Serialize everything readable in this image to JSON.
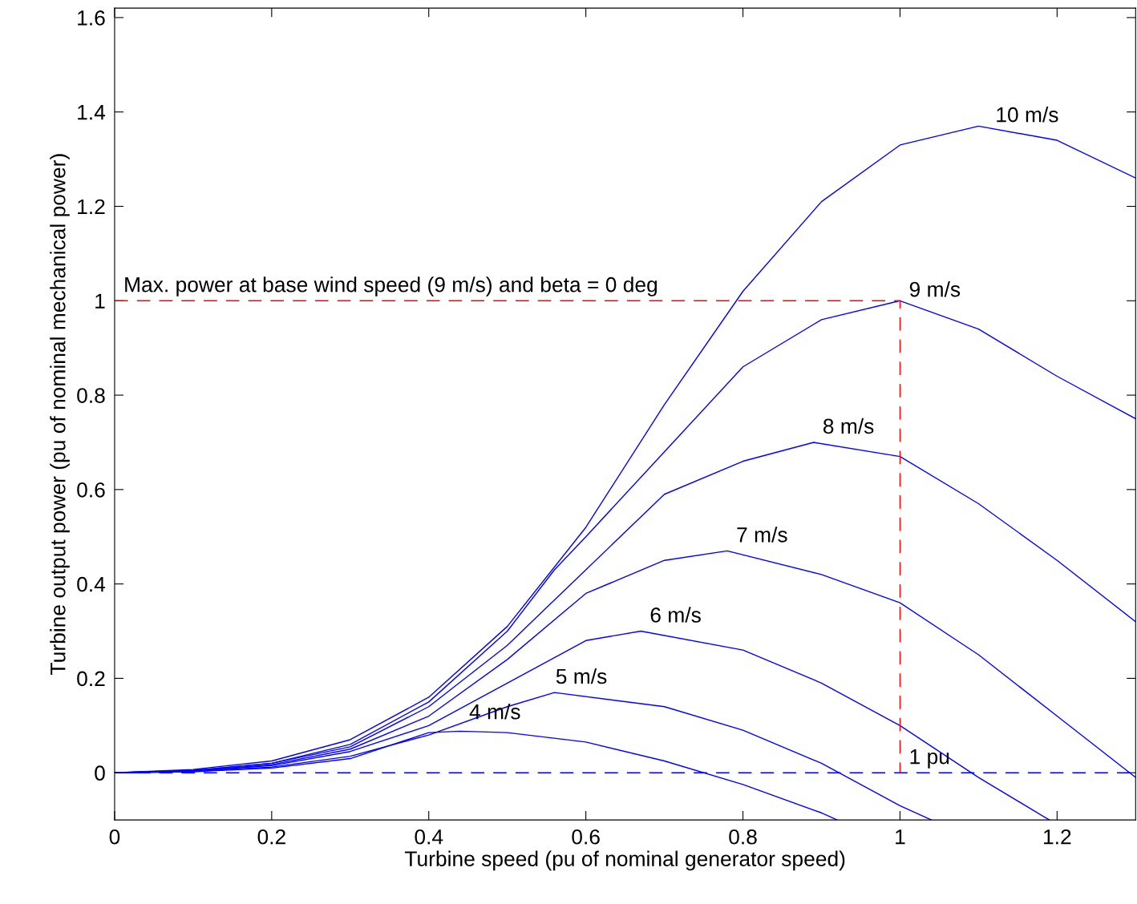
{
  "chart_data": {
    "type": "line",
    "xlabel": "Turbine speed (pu of nominal generator speed)",
    "ylabel": "Turbine output power (pu of nominal mechanical power)",
    "xlim": [
      0,
      1.3
    ],
    "ylim": [
      -0.1,
      1.62
    ],
    "xticks": [
      0,
      0.2,
      0.4,
      0.6,
      0.8,
      1,
      1.2
    ],
    "yticks": [
      0,
      0.2,
      0.4,
      0.6,
      0.8,
      1,
      1.2,
      1.4,
      1.6
    ],
    "marker": "none",
    "line_style": "solid",
    "series": [
      {
        "color": "#0000ff",
        "x": [
          0,
          0.1,
          0.2,
          0.3,
          0.4,
          0.5,
          0.6,
          0.7,
          0.8,
          0.9,
          1.0,
          1.1,
          1.2,
          1.3
        ],
        "values": [
          0,
          0.007,
          0.025,
          0.07,
          0.16,
          0.31,
          0.52,
          0.78,
          1.02,
          1.21,
          1.33,
          1.37,
          1.34,
          1.26
        ]
      },
      {
        "color": "#0000ff",
        "x": [
          0,
          0.1,
          0.2,
          0.3,
          0.4,
          0.5,
          0.56,
          0.6,
          0.7,
          0.8,
          0.9,
          1.0,
          1.1,
          1.2,
          1.3
        ],
        "values": [
          0,
          0.005,
          0.02,
          0.06,
          0.15,
          0.3,
          0.43,
          0.5,
          0.68,
          0.86,
          0.96,
          1.0,
          0.94,
          0.84,
          0.75
        ]
      },
      {
        "color": "#0000ff",
        "x": [
          0,
          0.1,
          0.2,
          0.3,
          0.4,
          0.5,
          0.6,
          0.7,
          0.8,
          0.89,
          1.0,
          1.1,
          1.2,
          1.3
        ],
        "values": [
          0,
          0.005,
          0.02,
          0.055,
          0.14,
          0.27,
          0.43,
          0.59,
          0.66,
          0.7,
          0.67,
          0.57,
          0.45,
          0.32
        ]
      },
      {
        "color": "#0000ff",
        "x": [
          0,
          0.1,
          0.2,
          0.3,
          0.4,
          0.5,
          0.6,
          0.7,
          0.78,
          0.9,
          1.0,
          1.1,
          1.2,
          1.3
        ],
        "values": [
          0,
          0.004,
          0.017,
          0.05,
          0.12,
          0.24,
          0.38,
          0.45,
          0.47,
          0.42,
          0.36,
          0.25,
          0.12,
          -0.01
        ]
      },
      {
        "color": "#0000ff",
        "x": [
          0,
          0.1,
          0.2,
          0.3,
          0.4,
          0.5,
          0.6,
          0.67,
          0.8,
          0.9,
          1.0,
          1.1,
          1.19
        ],
        "values": [
          0,
          0.004,
          0.015,
          0.045,
          0.1,
          0.19,
          0.28,
          0.3,
          0.26,
          0.19,
          0.1,
          -0.01,
          -0.1
        ]
      },
      {
        "color": "#0000ff",
        "x": [
          0,
          0.1,
          0.2,
          0.3,
          0.4,
          0.5,
          0.56,
          0.7,
          0.8,
          0.9,
          1.0,
          1.04
        ],
        "values": [
          0,
          0.003,
          0.012,
          0.035,
          0.08,
          0.14,
          0.17,
          0.14,
          0.09,
          0.02,
          -0.07,
          -0.1
        ]
      },
      {
        "color": "#0000ff",
        "x": [
          0,
          0.1,
          0.2,
          0.3,
          0.4,
          0.44,
          0.5,
          0.6,
          0.7,
          0.8,
          0.9,
          0.92
        ],
        "values": [
          0,
          0.002,
          0.01,
          0.03,
          0.085,
          0.088,
          0.085,
          0.065,
          0.025,
          -0.025,
          -0.085,
          -0.1
        ]
      },
      {
        "color": "#ff0000",
        "line_style": "dashed",
        "x": [
          0,
          1,
          1
        ],
        "values": [
          1,
          1,
          0
        ]
      }
    ],
    "ref_lines": [
      {
        "axis": "y",
        "value": 0,
        "color": "#0000ff",
        "line_style": "dashed"
      }
    ],
    "annotations": [
      {
        "text": "10 m/s",
        "x": 1.11,
        "y": 1.36
      },
      {
        "text": "9 m/s",
        "x": 1.0,
        "y": 0.99
      },
      {
        "text": "8 m/s",
        "x": 0.89,
        "y": 0.7
      },
      {
        "text": "7 m/s",
        "x": 0.78,
        "y": 0.47
      },
      {
        "text": "6 m/s",
        "x": 0.67,
        "y": 0.3
      },
      {
        "text": "5 m/s",
        "x": 0.55,
        "y": 0.17
      },
      {
        "text": "4 m/s",
        "x": 0.44,
        "y": 0.095
      },
      {
        "text": "Max. power at base wind speed (9 m/s) and beta = 0 deg",
        "x": 0,
        "y": 1
      },
      {
        "text": "1 pu",
        "x": 1,
        "y": 0
      }
    ]
  }
}
